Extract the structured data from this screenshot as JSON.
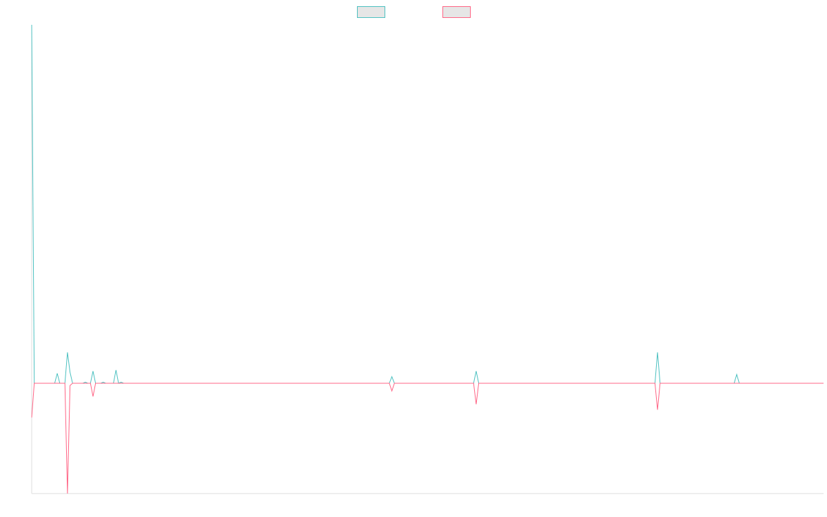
{
  "chart_data": {
    "type": "line",
    "title": "",
    "xlabel": "",
    "ylabel": "",
    "legend_position": "top-center",
    "grid": false,
    "xlim": [
      0,
      310
    ],
    "ylim": [
      -1.0,
      3.25
    ],
    "x": [
      0,
      1,
      2,
      3,
      4,
      5,
      6,
      7,
      8,
      9,
      10,
      11,
      12,
      13,
      14,
      15,
      16,
      17,
      18,
      19,
      20,
      21,
      22,
      23,
      24,
      25,
      26,
      27,
      28,
      29,
      30,
      31,
      32,
      33,
      34,
      35,
      36,
      37,
      38,
      39,
      40,
      41,
      42,
      43,
      44,
      45,
      46,
      47,
      48,
      49,
      50,
      51,
      52,
      53,
      54,
      55,
      56,
      57,
      58,
      59,
      60,
      61,
      62,
      63,
      64,
      65,
      66,
      67,
      68,
      69,
      70,
      71,
      72,
      73,
      74,
      75,
      76,
      77,
      78,
      79,
      80,
      81,
      82,
      83,
      84,
      85,
      86,
      87,
      88,
      89,
      90,
      91,
      92,
      93,
      94,
      95,
      96,
      97,
      98,
      99,
      100,
      101,
      102,
      103,
      104,
      105,
      106,
      107,
      108,
      109,
      110,
      111,
      112,
      113,
      114,
      115,
      116,
      117,
      118,
      119,
      120,
      121,
      122,
      123,
      124,
      125,
      126,
      127,
      128,
      129,
      130,
      131,
      132,
      133,
      134,
      135,
      136,
      137,
      138,
      139,
      140,
      141,
      142,
      143,
      144,
      145,
      146,
      147,
      148,
      149,
      150,
      151,
      152,
      153,
      154,
      155,
      156,
      157,
      158,
      159,
      160,
      161,
      162,
      163,
      164,
      165,
      166,
      167,
      168,
      169,
      170,
      171,
      172,
      173,
      174,
      175,
      176,
      177,
      178,
      179,
      180,
      181,
      182,
      183,
      184,
      185,
      186,
      187,
      188,
      189,
      190,
      191,
      192,
      193,
      194,
      195,
      196,
      197,
      198,
      199,
      200,
      201,
      202,
      203,
      204,
      205,
      206,
      207,
      208,
      209,
      210,
      211,
      212,
      213,
      214,
      215,
      216,
      217,
      218,
      219,
      220,
      221,
      222,
      223,
      224,
      225,
      226,
      227,
      228,
      229,
      230,
      231,
      232,
      233,
      234,
      235,
      236,
      237,
      238,
      239,
      240,
      241,
      242,
      243,
      244,
      245,
      246,
      247,
      248,
      249,
      250,
      251,
      252,
      253,
      254,
      255,
      256,
      257,
      258,
      259,
      260,
      261,
      262,
      263,
      264,
      265,
      266,
      267,
      268,
      269,
      270,
      271,
      272,
      273,
      274,
      275,
      276,
      277,
      278,
      279,
      280,
      281,
      282,
      283,
      284,
      285,
      286,
      287,
      288,
      289,
      290,
      291,
      292,
      293,
      294,
      295,
      296,
      297,
      298,
      299,
      300,
      301,
      302,
      303,
      304,
      305,
      306,
      307,
      308,
      309,
      310
    ],
    "series": [
      {
        "name": "",
        "color": "#4bc0c0",
        "fill": "#e6e6e6",
        "spikes": [
          [
            0,
            3.25
          ],
          [
            10,
            0.09
          ],
          [
            14,
            0.28
          ],
          [
            15,
            0.1
          ],
          [
            21,
            0.01
          ],
          [
            24,
            0.11
          ],
          [
            28,
            0.01
          ],
          [
            33,
            0.12
          ],
          [
            35,
            0.01
          ],
          [
            141,
            0.06
          ],
          [
            174,
            0.11
          ],
          [
            245,
            0.28
          ],
          [
            276,
            0.08
          ]
        ]
      },
      {
        "name": "",
        "color": "#ff6384",
        "fill": "#e6e6e6",
        "spikes": [
          [
            0,
            -0.31
          ],
          [
            14,
            -1.0
          ],
          [
            15,
            -0.02
          ],
          [
            24,
            -0.12
          ],
          [
            141,
            -0.07
          ],
          [
            174,
            -0.19
          ],
          [
            245,
            -0.24
          ]
        ]
      }
    ]
  }
}
